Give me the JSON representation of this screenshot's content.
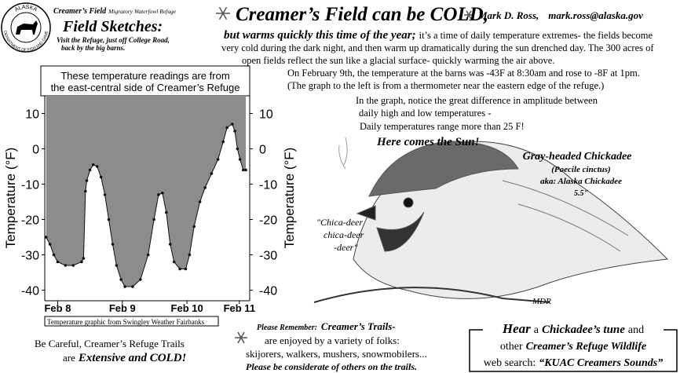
{
  "logo": {
    "top": "ALASKA",
    "bottom": "DEPARTMENT OF FISH AND GAME"
  },
  "masthead": {
    "name": "Creamer’s Field",
    "subtitle": "Migratory Waterfowl Refuge",
    "title": "Field Sketches:",
    "directions": [
      "Visit the Refuge, just off College Road,",
      "back by the big barns."
    ]
  },
  "headline": {
    "title": "Creamer’s Field can be COLD,",
    "author": "Mark D. Ross,",
    "email": "mark.ross@alaska.gov"
  },
  "intro": {
    "lead": "but warms quickly this time of the year;",
    "lines": [
      "it’s a time of daily temperature extremes- the fields become",
      "very cold during the dark night, and then warm up dramatically during the sun drenched day.  The 300 acres of",
      "open fields reflect the sun like a glacial surface- quickly warming the air above."
    ]
  },
  "chart_data": {
    "type": "area",
    "title": [
      "These temperature readings are from",
      "the east-central side of Creamer’s Refuge"
    ],
    "y_label": "Temperature (°F)",
    "mirror_y_axis": true,
    "x": [
      -0.18,
      -0.12,
      -0.06,
      0,
      0.12,
      0.24,
      0.37,
      0.4,
      0.43,
      0.45,
      0.5,
      0.55,
      0.61,
      0.67,
      0.73,
      0.79,
      0.85,
      0.91,
      0.98,
      1.04,
      1.16,
      1.28,
      1.4,
      1.49,
      1.56,
      1.62,
      1.68,
      1.74,
      1.8,
      1.89,
      1.98,
      2.04,
      2.11,
      2.2,
      2.28,
      2.38,
      2.48,
      2.56,
      2.62,
      2.7,
      2.74,
      2.78,
      2.82,
      2.87,
      2.91
    ],
    "values": [
      -25,
      -27,
      -30,
      -32,
      -33,
      -33,
      -32,
      -31,
      -12,
      -9,
      -6,
      -4.5,
      -5,
      -8,
      -13,
      -20,
      -27,
      -33,
      -37,
      -39,
      -39,
      -37,
      -30,
      -20,
      -13,
      -12.5,
      -18,
      -27,
      -32,
      -34,
      -34,
      -30,
      -22,
      -15,
      -11,
      -7,
      -3,
      2,
      6,
      7,
      5,
      0,
      -3,
      -6,
      -6
    ],
    "color": "#8c8c8c",
    "line_color": "#111111",
    "xlim": [
      -0.2,
      2.97
    ],
    "xticks": [
      {
        "value": 0,
        "label": "Feb 8"
      },
      {
        "value": 1,
        "label": "Feb 9"
      },
      {
        "value": 2,
        "label": "Feb 10"
      },
      {
        "value": 2.81,
        "label": "Feb 11"
      }
    ],
    "ylim": [
      -43,
      15
    ],
    "yticks": [
      10,
      0,
      -10,
      -20,
      -30,
      -40
    ],
    "source": "Temperature graphic from Swingley Weather Fairbanks"
  },
  "notes": {
    "lines": [
      "On February 9th, the temperature at the barns was -43F at 8:30am and rose to  -8F at 1pm.",
      "(The graph to the left is from a thermometer near the eastern edge of the refuge.)",
      "In the graph, notice the great difference in amplitude between",
      "daily high and low temperatures -",
      "Daily temperatures range more than 25 F!"
    ],
    "callout": "Here comes the Sun!"
  },
  "bird": {
    "name": "Gray-headed Chickadee",
    "species": "(Poecile cinctus)",
    "aka": "aka: Alaska Chickadee",
    "size": "5.5\"",
    "song": [
      "\"Chica-deer",
      "chica-deer",
      "-deer\""
    ],
    "signature": "MDR"
  },
  "warning": {
    "line": "Be Careful, Creamer’s Refuge Trails",
    "prefix": "are",
    "emphasis": "Extensive and COLD!"
  },
  "trails": {
    "label": "Please Remember:",
    "title": "Creamer’s Trails-",
    "lines": [
      "are enjoyed by a variety of folks:",
      "skijorers, walkers, mushers, snowmobilers..."
    ],
    "closing": "Please be considerate of others on the trails."
  },
  "sound": {
    "lines": [
      [
        "Hear",
        "a",
        "Chickadee’s tune",
        "and"
      ],
      [
        "other",
        "Creamer’s Refuge Wildlife"
      ],
      [
        "web search:",
        "“KUAC Creamers Sounds”"
      ]
    ]
  }
}
